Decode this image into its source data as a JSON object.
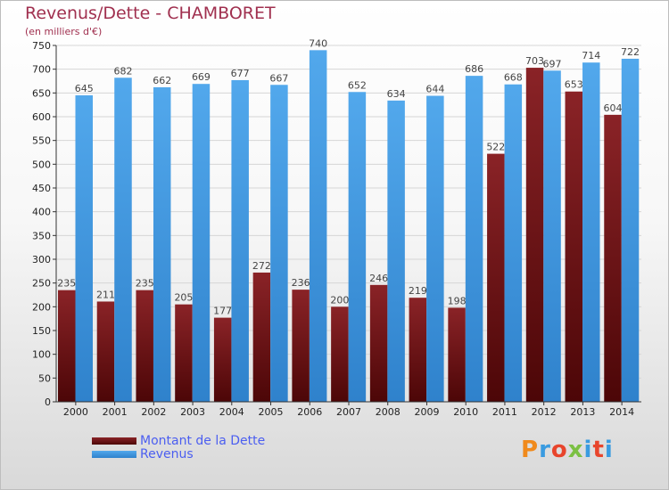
{
  "header": {
    "title": "Revenus/Dette - CHAMBORET",
    "subtitle": "(en milliers d'€)"
  },
  "colors": {
    "debt": "#7a1a1e",
    "debt_dark": "#4c0607",
    "revenue": "#4da3e8",
    "revenue_dark": "#2b7dc7",
    "grid": "#d6d6d6",
    "axis": "#333333"
  },
  "legend": {
    "debt_label": "Montant de la Dette",
    "revenue_label": "Revenus"
  },
  "logo": {
    "text": "Proxiti"
  },
  "chart_data": {
    "type": "bar",
    "title": "Revenus/Dette - CHAMBORET",
    "subtitle": "(en milliers d'€)",
    "categories": [
      "2000",
      "2001",
      "2002",
      "2003",
      "2004",
      "2005",
      "2006",
      "2007",
      "2008",
      "2009",
      "2010",
      "2011",
      "2012",
      "2013",
      "2014"
    ],
    "series": [
      {
        "name": "Montant de la Dette",
        "values": [
          235,
          211,
          235,
          205,
          177,
          272,
          236,
          200,
          246,
          219,
          198,
          522,
          703,
          653,
          604
        ]
      },
      {
        "name": "Revenus",
        "values": [
          645,
          682,
          662,
          669,
          677,
          667,
          740,
          652,
          634,
          644,
          686,
          668,
          697,
          714,
          722
        ]
      }
    ],
    "ylim": [
      0,
      750
    ],
    "yticks": [
      0,
      50,
      100,
      150,
      200,
      250,
      300,
      350,
      400,
      450,
      500,
      550,
      600,
      650,
      700,
      750
    ],
    "grid": true,
    "legend_position": "bottom-left"
  }
}
